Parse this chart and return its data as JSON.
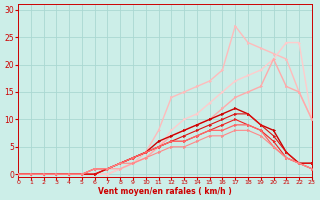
{
  "background_color": "#cceee8",
  "grid_color": "#aad8d2",
  "xlabel": "Vent moyen/en rafales ( km/h )",
  "xlim": [
    0,
    23
  ],
  "ylim": [
    -0.5,
    31
  ],
  "yticks": [
    0,
    5,
    10,
    15,
    20,
    25,
    30
  ],
  "xticks": [
    0,
    1,
    2,
    3,
    4,
    5,
    6,
    7,
    8,
    9,
    10,
    11,
    12,
    13,
    14,
    15,
    16,
    17,
    18,
    19,
    20,
    21,
    22,
    23
  ],
  "series": [
    {
      "x": [
        0,
        1,
        2,
        3,
        4,
        5,
        6,
        7,
        8,
        9,
        10,
        11,
        12,
        13,
        14,
        15,
        16,
        17,
        18,
        19,
        20,
        21,
        22,
        23
      ],
      "y": [
        0,
        0,
        0,
        0,
        0,
        0,
        0,
        0,
        1,
        2,
        4,
        8,
        14,
        15,
        16,
        17,
        19,
        27,
        24,
        23,
        22,
        21,
        15,
        10
      ],
      "color": "#ffbbbb",
      "lw": 1.0
    },
    {
      "x": [
        0,
        1,
        2,
        3,
        4,
        5,
        6,
        7,
        8,
        9,
        10,
        11,
        12,
        13,
        14,
        15,
        16,
        17,
        18,
        19,
        20,
        21,
        22,
        23
      ],
      "y": [
        0,
        0,
        0,
        0,
        0,
        0,
        0,
        0,
        1,
        2,
        3,
        5,
        8,
        10,
        11,
        13,
        15,
        17,
        18,
        19,
        21,
        24,
        24,
        10
      ],
      "color": "#ffcccc",
      "lw": 1.0
    },
    {
      "x": [
        0,
        1,
        2,
        3,
        4,
        5,
        6,
        7,
        8,
        9,
        10,
        11,
        12,
        13,
        14,
        15,
        16,
        17,
        18,
        19,
        20,
        21,
        22,
        23
      ],
      "y": [
        0,
        0,
        0,
        0,
        0,
        0,
        0,
        1,
        1,
        2,
        3,
        5,
        7,
        8,
        9,
        10,
        12,
        14,
        15,
        16,
        21,
        16,
        15,
        10
      ],
      "color": "#ffaaaa",
      "lw": 1.0
    },
    {
      "x": [
        0,
        1,
        2,
        3,
        4,
        5,
        6,
        7,
        8,
        9,
        10,
        11,
        12,
        13,
        14,
        15,
        16,
        17,
        18,
        19,
        20,
        21,
        22,
        23
      ],
      "y": [
        0,
        0,
        0,
        0,
        0,
        0,
        0,
        1,
        2,
        3,
        4,
        6,
        7,
        8,
        9,
        10,
        11,
        12,
        11,
        9,
        8,
        4,
        2,
        2
      ],
      "color": "#cc0000",
      "lw": 1.0
    },
    {
      "x": [
        0,
        1,
        2,
        3,
        4,
        5,
        6,
        7,
        8,
        9,
        10,
        11,
        12,
        13,
        14,
        15,
        16,
        17,
        18,
        19,
        20,
        21,
        22,
        23
      ],
      "y": [
        0,
        0,
        0,
        0,
        0,
        0,
        0,
        1,
        2,
        3,
        4,
        5,
        6,
        7,
        8,
        9,
        10,
        11,
        11,
        9,
        7,
        4,
        2,
        2
      ],
      "color": "#dd1111",
      "lw": 0.8
    },
    {
      "x": [
        0,
        1,
        2,
        3,
        4,
        5,
        6,
        7,
        8,
        9,
        10,
        11,
        12,
        13,
        14,
        15,
        16,
        17,
        18,
        19,
        20,
        21,
        22,
        23
      ],
      "y": [
        0,
        0,
        0,
        0,
        0,
        0,
        1,
        1,
        2,
        3,
        4,
        5,
        6,
        6,
        7,
        8,
        9,
        10,
        9,
        8,
        6,
        3,
        2,
        1
      ],
      "color": "#ee2222",
      "lw": 0.8
    },
    {
      "x": [
        0,
        1,
        2,
        3,
        4,
        5,
        6,
        7,
        8,
        9,
        10,
        11,
        12,
        13,
        14,
        15,
        16,
        17,
        18,
        19,
        20,
        21,
        22,
        23
      ],
      "y": [
        0,
        0,
        0,
        0,
        0,
        0,
        1,
        1,
        2,
        3,
        4,
        5,
        6,
        6,
        7,
        8,
        8,
        9,
        9,
        8,
        5,
        3,
        2,
        1
      ],
      "color": "#ff6666",
      "lw": 0.9
    },
    {
      "x": [
        0,
        1,
        2,
        3,
        4,
        5,
        6,
        7,
        8,
        9,
        10,
        11,
        12,
        13,
        14,
        15,
        16,
        17,
        18,
        19,
        20,
        21,
        22,
        23
      ],
      "y": [
        0,
        0,
        0,
        0,
        0,
        0,
        1,
        1,
        2,
        2,
        3,
        4,
        5,
        5,
        6,
        7,
        7,
        8,
        8,
        7,
        5,
        3,
        2,
        1
      ],
      "color": "#ff8888",
      "lw": 0.8
    }
  ]
}
